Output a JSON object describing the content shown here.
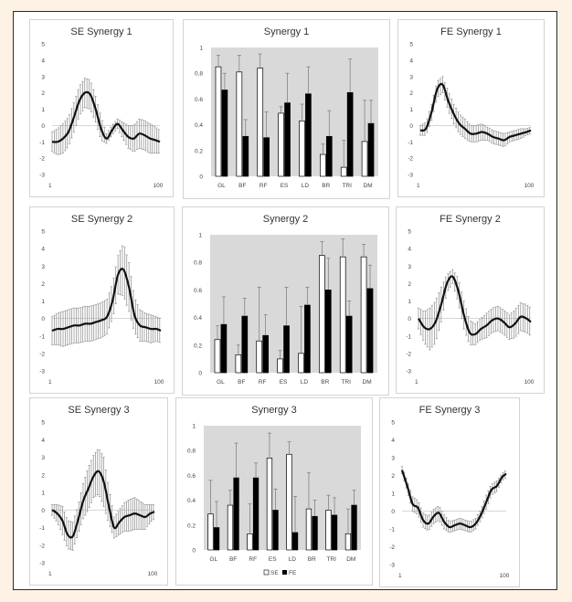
{
  "chart_data": [
    {
      "type": "line",
      "title": "SE Synergy 1",
      "x_tick_labels": [
        "1",
        "100"
      ],
      "y_tick_labels": [
        "5",
        "4",
        "3",
        "2",
        "1",
        "0",
        "-1",
        "-2",
        "-3"
      ],
      "ylim": [
        -3,
        5
      ],
      "x": [
        1,
        6,
        11,
        16,
        21,
        26,
        31,
        36,
        41,
        46,
        51,
        56,
        61,
        66,
        71,
        76,
        81,
        86,
        91,
        96,
        100
      ],
      "series": [
        {
          "values": [
            -1.0,
            -1.0,
            -0.8,
            -0.4,
            0.5,
            1.5,
            2.0,
            1.9,
            1.0,
            -0.2,
            -0.8,
            -0.3,
            0.1,
            -0.3,
            -0.7,
            -0.8,
            -0.5,
            -0.6,
            -0.8,
            -0.9,
            -1.0
          ],
          "error": [
            0.6,
            0.8,
            0.9,
            0.9,
            0.9,
            0.9,
            0.9,
            0.9,
            0.8,
            0.7,
            0.3,
            0.3,
            0.3,
            0.5,
            0.7,
            0.8,
            0.9,
            0.9,
            0.9,
            0.8,
            0.7
          ]
        }
      ]
    },
    {
      "type": "bar",
      "title": "Synergy 1",
      "categories": [
        "GL",
        "BF",
        "RF",
        "ES",
        "LD",
        "BR",
        "TRI",
        "DM"
      ],
      "y_tick_labels": [
        "1",
        "0.8",
        "0.6",
        "0.4",
        "0.2",
        "0"
      ],
      "ylim": [
        0,
        1
      ],
      "series": [
        {
          "values": [
            0.85,
            0.81,
            0.84,
            0.49,
            0.43,
            0.17,
            0.07,
            0.27
          ],
          "error": [
            0.09,
            0.13,
            0.11,
            0.05,
            0.13,
            0.08,
            0.21,
            0.32
          ]
        },
        {
          "values": [
            0.67,
            0.31,
            0.3,
            0.57,
            0.64,
            0.31,
            0.65,
            0.41
          ],
          "error": [
            0.13,
            0.13,
            0.2,
            0.23,
            0.21,
            0.2,
            0.26,
            0.18
          ]
        }
      ]
    },
    {
      "type": "line",
      "title": "FE Synergy 1",
      "x_tick_labels": [
        "1",
        "100"
      ],
      "y_tick_labels": [
        "5",
        "4",
        "3",
        "2",
        "1",
        "0",
        "-1",
        "-2",
        "-3"
      ],
      "ylim": [
        -3,
        5
      ],
      "x": [
        1,
        6,
        11,
        16,
        21,
        26,
        31,
        36,
        41,
        46,
        51,
        56,
        61,
        66,
        71,
        76,
        81,
        86,
        91,
        96,
        100
      ],
      "series": [
        {
          "values": [
            -0.3,
            -0.2,
            0.8,
            2.2,
            2.5,
            1.5,
            0.7,
            0.1,
            -0.2,
            -0.5,
            -0.5,
            -0.4,
            -0.5,
            -0.7,
            -0.8,
            -0.9,
            -0.7,
            -0.6,
            -0.5,
            -0.4,
            -0.3
          ],
          "error": [
            0.3,
            0.4,
            0.5,
            0.5,
            0.5,
            0.6,
            0.6,
            0.6,
            0.6,
            0.5,
            0.5,
            0.5,
            0.4,
            0.4,
            0.4,
            0.4,
            0.3,
            0.3,
            0.3,
            0.2,
            0.2
          ]
        }
      ]
    },
    {
      "type": "line",
      "title": "SE Synergy 2",
      "x_tick_labels": [
        "1",
        "100"
      ],
      "y_tick_labels": [
        "5",
        "4",
        "3",
        "2",
        "1",
        "0",
        "-1",
        "-2",
        "-3"
      ],
      "ylim": [
        -3,
        5
      ],
      "x": [
        1,
        6,
        11,
        16,
        21,
        26,
        31,
        36,
        41,
        46,
        51,
        56,
        61,
        66,
        71,
        76,
        81,
        86,
        91,
        96,
        100
      ],
      "series": [
        {
          "values": [
            -0.7,
            -0.6,
            -0.6,
            -0.5,
            -0.4,
            -0.4,
            -0.3,
            -0.3,
            -0.2,
            -0.1,
            0.1,
            1.0,
            2.5,
            2.8,
            1.8,
            0.2,
            -0.4,
            -0.5,
            -0.6,
            -0.6,
            -0.7
          ],
          "error": [
            0.8,
            0.9,
            1.0,
            1.0,
            1.0,
            1.0,
            1.0,
            1.0,
            1.0,
            1.0,
            1.0,
            1.0,
            1.1,
            1.5,
            1.4,
            1.0,
            0.9,
            0.8,
            0.8,
            0.7,
            0.7
          ]
        }
      ]
    },
    {
      "type": "bar",
      "title": "Synergy 2",
      "categories": [
        "GL",
        "BF",
        "RF",
        "ES",
        "LD",
        "BR",
        "TRI",
        "DM"
      ],
      "y_tick_labels": [
        "1",
        "0.8",
        "0.6",
        "0.4",
        "0.2",
        "0"
      ],
      "ylim": [
        0,
        1
      ],
      "series": [
        {
          "values": [
            0.24,
            0.13,
            0.23,
            0.1,
            0.14,
            0.85,
            0.84,
            0.84
          ],
          "error": [
            0.1,
            0.07,
            0.39,
            0.06,
            0.34,
            0.1,
            0.13,
            0.09
          ]
        },
        {
          "values": [
            0.35,
            0.41,
            0.27,
            0.34,
            0.49,
            0.6,
            0.41,
            0.61
          ],
          "error": [
            0.2,
            0.13,
            0.15,
            0.28,
            0.13,
            0.23,
            0.11,
            0.17
          ]
        }
      ]
    },
    {
      "type": "line",
      "title": "FE Synergy 2",
      "x_tick_labels": [
        "1",
        "100"
      ],
      "y_tick_labels": [
        "5",
        "4",
        "3",
        "2",
        "1",
        "0",
        "-1",
        "-2",
        "-3"
      ],
      "ylim": [
        -3,
        5
      ],
      "x": [
        1,
        6,
        11,
        16,
        21,
        26,
        31,
        36,
        41,
        46,
        51,
        56,
        61,
        66,
        71,
        76,
        81,
        86,
        91,
        96,
        100
      ],
      "series": [
        {
          "values": [
            0.0,
            -0.5,
            -0.6,
            -0.2,
            0.8,
            2.0,
            2.4,
            1.6,
            0.2,
            -0.8,
            -0.9,
            -0.6,
            -0.4,
            -0.1,
            0.0,
            -0.2,
            -0.5,
            -0.3,
            0.1,
            0.0,
            -0.2
          ],
          "error": [
            0.6,
            0.9,
            1.2,
            1.2,
            1.0,
            0.5,
            0.4,
            0.7,
            0.8,
            0.7,
            0.6,
            0.6,
            0.7,
            0.7,
            0.7,
            0.7,
            0.7,
            0.8,
            0.8,
            0.8,
            0.8
          ]
        }
      ]
    },
    {
      "type": "line",
      "title": "SE Synergy 3",
      "x_tick_labels": [
        "1",
        "100"
      ],
      "y_tick_labels": [
        "5",
        "4",
        "3",
        "2",
        "1",
        "0",
        "-1",
        "-2",
        "-3"
      ],
      "ylim": [
        -3,
        5
      ],
      "x": [
        1,
        6,
        11,
        16,
        21,
        26,
        31,
        36,
        41,
        46,
        51,
        56,
        61,
        66,
        71,
        76,
        81,
        86,
        91,
        96,
        100
      ],
      "series": [
        {
          "values": [
            0.0,
            -0.2,
            -0.6,
            -1.4,
            -1.5,
            -0.6,
            0.5,
            1.2,
            1.9,
            2.2,
            1.6,
            0.2,
            -1.0,
            -0.7,
            -0.4,
            -0.3,
            -0.2,
            -0.3,
            -0.4,
            -0.2,
            -0.1
          ],
          "error": [
            0.3,
            0.5,
            0.8,
            0.8,
            0.8,
            0.8,
            1.0,
            1.2,
            1.2,
            1.3,
            1.4,
            1.0,
            0.6,
            0.7,
            0.8,
            0.9,
            0.9,
            0.8,
            0.7,
            0.5,
            0.4
          ]
        }
      ]
    },
    {
      "type": "bar",
      "title": "Synergy 3",
      "categories": [
        "GL",
        "BF",
        "RF",
        "ES",
        "LD",
        "BR",
        "TRI",
        "DM"
      ],
      "y_tick_labels": [
        "1",
        "0.8",
        "0.6",
        "0.4",
        "0.2",
        "0"
      ],
      "ylim": [
        0,
        1
      ],
      "legend": [
        "SE",
        "FE"
      ],
      "legend_position": "bottom",
      "series": [
        {
          "name": "SE",
          "values": [
            0.29,
            0.36,
            0.13,
            0.74,
            0.77,
            0.33,
            0.32,
            0.13
          ],
          "error": [
            0.27,
            0.12,
            0.24,
            0.2,
            0.1,
            0.29,
            0.12,
            0.2
          ]
        },
        {
          "name": "FE",
          "values": [
            0.18,
            0.58,
            0.58,
            0.32,
            0.14,
            0.27,
            0.28,
            0.36
          ],
          "error": [
            0.21,
            0.28,
            0.12,
            0.17,
            0.29,
            0.13,
            0.14,
            0.12
          ]
        }
      ]
    },
    {
      "type": "line",
      "title": "FE Synergy 3",
      "x_tick_labels": [
        "1",
        "100"
      ],
      "y_tick_labels": [
        "5",
        "4",
        "3",
        "2",
        "1",
        "0",
        "-1",
        "-2",
        "-3"
      ],
      "ylim": [
        -3,
        5
      ],
      "x": [
        1,
        6,
        11,
        16,
        21,
        26,
        31,
        36,
        41,
        46,
        51,
        56,
        61,
        66,
        71,
        76,
        81,
        86,
        91,
        96,
        100
      ],
      "series": [
        {
          "values": [
            2.3,
            1.4,
            0.4,
            0.2,
            -0.5,
            -0.7,
            -0.3,
            -0.1,
            -0.6,
            -0.9,
            -0.8,
            -0.7,
            -0.8,
            -0.9,
            -0.7,
            -0.2,
            0.5,
            1.2,
            1.4,
            1.9,
            2.1
          ],
          "error": [
            0.2,
            0.3,
            0.4,
            0.4,
            0.4,
            0.4,
            0.4,
            0.4,
            0.4,
            0.3,
            0.3,
            0.3,
            0.3,
            0.3,
            0.3,
            0.3,
            0.4,
            0.3,
            0.3,
            0.2,
            0.2
          ]
        }
      ]
    }
  ]
}
